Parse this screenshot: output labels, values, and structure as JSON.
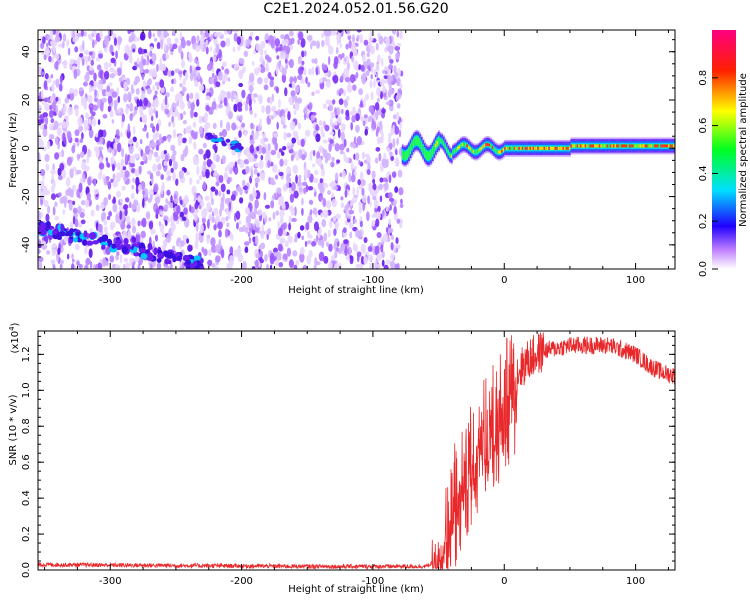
{
  "title": "C2E1.2024.052.01.56.G20",
  "chart_data": [
    {
      "type": "heatmap",
      "xlabel": "Height of straight line (km)",
      "ylabel": "Frequency (Hz)",
      "xlim": [
        -355,
        130
      ],
      "ylim": [
        -50,
        49
      ],
      "xticks": [
        -300,
        -200,
        -100,
        0,
        100
      ],
      "yticks": [
        -40,
        -20,
        0,
        20,
        40
      ],
      "colorbar": {
        "label": "Normalized spectral amplitude",
        "range": [
          0.0,
          1.0
        ],
        "ticks": [
          0.0,
          0.2,
          0.4,
          0.6,
          0.8
        ]
      },
      "features": [
        {
          "desc": "broadband noise",
          "x": [
            -355,
            -78
          ],
          "y": [
            -50,
            49
          ],
          "amplitude": 0.12
        },
        {
          "desc": "line near -30 to -50 Hz",
          "x": [
            -355,
            -230
          ],
          "y_start": -33,
          "y_end": -48,
          "amplitude": 0.25
        },
        {
          "desc": "short line",
          "x": [
            -225,
            -200
          ],
          "y_start": 5,
          "y_end": 0,
          "amplitude": 0.2
        },
        {
          "desc": "signal line near 0 Hz",
          "x": [
            -78,
            130
          ],
          "y": 0,
          "amplitude": 0.9
        }
      ]
    },
    {
      "type": "line",
      "xlabel": "Height of straight line (km)",
      "ylabel": "SNR (10 * v/v)",
      "yscale_label": "(x10",
      "yscale_exp": "4",
      "yscale_close": ")",
      "xlim": [
        -355,
        130
      ],
      "ylim": [
        0.0,
        1.33
      ],
      "xticks": [
        -300,
        -200,
        -100,
        0,
        100
      ],
      "yticks": [
        0.0,
        0.2,
        0.4,
        0.6,
        0.8,
        1.0,
        1.2
      ],
      "series_color": "#e8282a",
      "envelope": [
        [
          -355,
          0.03
        ],
        [
          -250,
          0.025
        ],
        [
          -150,
          0.02
        ],
        [
          -60,
          0.02
        ],
        [
          -50,
          0.05
        ],
        [
          -45,
          0.2
        ],
        [
          -40,
          0.4
        ],
        [
          -35,
          0.5
        ],
        [
          -30,
          0.6
        ],
        [
          -25,
          0.7
        ],
        [
          -15,
          0.8
        ],
        [
          -5,
          0.9
        ],
        [
          0,
          1.0
        ],
        [
          10,
          1.1
        ],
        [
          20,
          1.18
        ],
        [
          30,
          1.22
        ],
        [
          50,
          1.25
        ],
        [
          80,
          1.25
        ],
        [
          100,
          1.2
        ],
        [
          110,
          1.14
        ],
        [
          120,
          1.1
        ],
        [
          130,
          1.08
        ]
      ]
    }
  ]
}
